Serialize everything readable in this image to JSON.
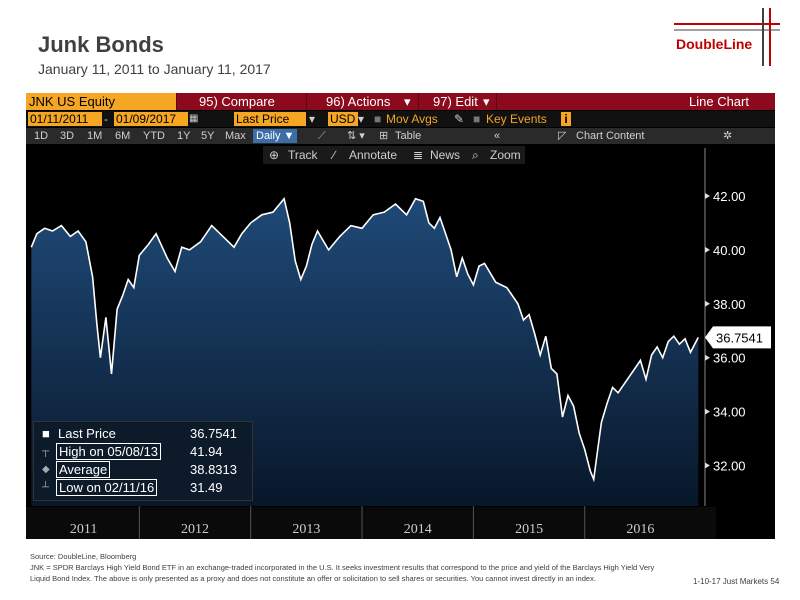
{
  "header": {
    "title": "Junk Bonds",
    "subtitle": "January 11, 2011  to January 11, 2017",
    "logo": "DoubleLine"
  },
  "terminal": {
    "ticker": "JNK US Equity",
    "menus": [
      "95) Compare",
      "96) Actions",
      "97) Edit",
      "Line Chart"
    ],
    "start_date": "01/11/2011",
    "end_date": "01/09/2017",
    "field": "Last Price",
    "currency": "USD",
    "options": [
      "Mov Avgs",
      "Key Events"
    ],
    "periods": [
      "1D",
      "3D",
      "1M",
      "6M",
      "YTD",
      "1Y",
      "5Y",
      "Max"
    ],
    "frequency": "Daily",
    "table_label": "Table",
    "chart_content_label": "Chart Content",
    "tools": [
      "Track",
      "Annotate",
      "News",
      "Zoom"
    ]
  },
  "legend": {
    "rows": [
      {
        "label": "Last Price",
        "value": "36.7541"
      },
      {
        "label": "High on 05/08/13",
        "value": "41.94"
      },
      {
        "label": "Average",
        "value": "38.8313"
      },
      {
        "label": "Low on 02/11/16",
        "value": "31.49"
      }
    ]
  },
  "chart_data": {
    "type": "area",
    "title": "",
    "xlabel": "",
    "ylabel": "",
    "ylim": [
      30.5,
      43.0
    ],
    "x_tick_labels": [
      "2011",
      "2012",
      "2013",
      "2014",
      "2015",
      "2016"
    ],
    "y_ticks": [
      32,
      34,
      36,
      38,
      40,
      42
    ],
    "y_tick_labels": [
      "32.00",
      "34.00",
      "36.00",
      "38.00",
      "40.00",
      "42.00"
    ],
    "last_value_label": "36.7541",
    "colors": {
      "line": "#ffffff",
      "fill_top": "#1f4a78",
      "fill_bottom": "#08172a",
      "background": "#000000"
    },
    "series": [
      {
        "x": [
          2011.03,
          2011.08,
          2011.15,
          2011.22,
          2011.3,
          2011.38,
          2011.45,
          2011.52,
          2011.58,
          2011.62,
          2011.65,
          2011.7,
          2011.75,
          2011.8,
          2011.85,
          2011.9,
          2011.95,
          2012.0,
          2012.08,
          2012.15,
          2012.25,
          2012.32,
          2012.38,
          2012.45,
          2012.55,
          2012.65,
          2012.75,
          2012.85,
          2012.92,
          2013.0,
          2013.1,
          2013.2,
          2013.3,
          2013.35,
          2013.4,
          2013.45,
          2013.5,
          2013.55,
          2013.6,
          2013.7,
          2013.8,
          2013.9,
          2014.0,
          2014.1,
          2014.2,
          2014.3,
          2014.4,
          2014.48,
          2014.55,
          2014.6,
          2014.65,
          2014.7,
          2014.75,
          2014.8,
          2014.85,
          2014.9,
          2014.95,
          2015.0,
          2015.05,
          2015.1,
          2015.2,
          2015.3,
          2015.4,
          2015.45,
          2015.5,
          2015.55,
          2015.6,
          2015.65,
          2015.7,
          2015.75,
          2015.8,
          2015.85,
          2015.9,
          2015.95,
          2016.0,
          2016.05,
          2016.08,
          2016.11,
          2016.15,
          2016.2,
          2016.25,
          2016.3,
          2016.4,
          2016.5,
          2016.55,
          2016.6,
          2016.65,
          2016.7,
          2016.75,
          2016.8,
          2016.85,
          2016.9,
          2016.95,
          2017.0,
          2017.02
        ],
        "y": [
          40.1,
          40.6,
          40.8,
          40.7,
          40.9,
          40.5,
          40.7,
          40.3,
          39.0,
          37.2,
          36.0,
          37.5,
          35.4,
          37.8,
          38.3,
          38.9,
          38.6,
          39.8,
          40.2,
          40.6,
          39.7,
          39.2,
          40.1,
          40.0,
          40.3,
          40.9,
          40.5,
          40.1,
          40.6,
          41.0,
          41.3,
          41.4,
          41.9,
          41.0,
          39.6,
          38.9,
          39.4,
          40.2,
          40.7,
          40.0,
          40.5,
          40.9,
          40.8,
          41.3,
          41.4,
          41.7,
          41.3,
          41.9,
          41.8,
          41.0,
          40.8,
          41.2,
          40.6,
          40.0,
          39.0,
          39.7,
          39.1,
          38.7,
          39.4,
          39.5,
          38.8,
          38.6,
          38.0,
          37.4,
          37.6,
          36.9,
          36.1,
          36.8,
          35.6,
          35.4,
          33.8,
          34.6,
          34.2,
          33.2,
          32.6,
          31.8,
          31.49,
          32.4,
          33.6,
          34.3,
          34.9,
          34.7,
          35.3,
          35.9,
          35.2,
          36.1,
          36.4,
          36.0,
          36.6,
          36.8,
          36.5,
          36.7,
          36.2,
          36.6,
          36.7541
        ]
      }
    ]
  },
  "footer": {
    "source": "Source: DoubleLine, Bloomberg",
    "note_line1": "JNK = SPDR Barclays High Yield Bond ETF in an exchange-traded incorporated in the U.S. It seeks investment results that correspond to the price and yield of the Barclays High Yield Very",
    "note_line2": "Liquid Bond Index. The above is only presented as a proxy and does not constitute an offer or solicitation to sell shares or securities. You cannot invest directly in  an  index.",
    "page": "1-10-17 Just Markets  54"
  }
}
